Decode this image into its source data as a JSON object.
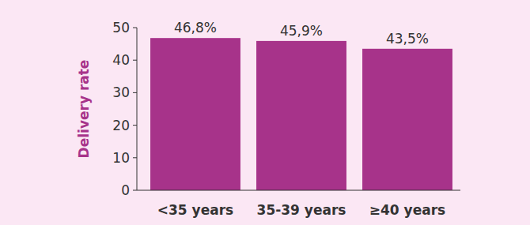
{
  "chart_data": {
    "type": "bar",
    "y_label": "Delivery rate",
    "categories": [
      "<35 years",
      "35-39 years",
      "≥40 years"
    ],
    "values": [
      46.8,
      45.9,
      43.5
    ],
    "value_labels": [
      "46,8%",
      "45,9%",
      "43,5%"
    ],
    "color": "#a7338a",
    "ylim": [
      0,
      50
    ],
    "yticks": [
      0,
      10,
      20,
      30,
      40,
      50
    ],
    "grid": false,
    "data_labels": true
  }
}
